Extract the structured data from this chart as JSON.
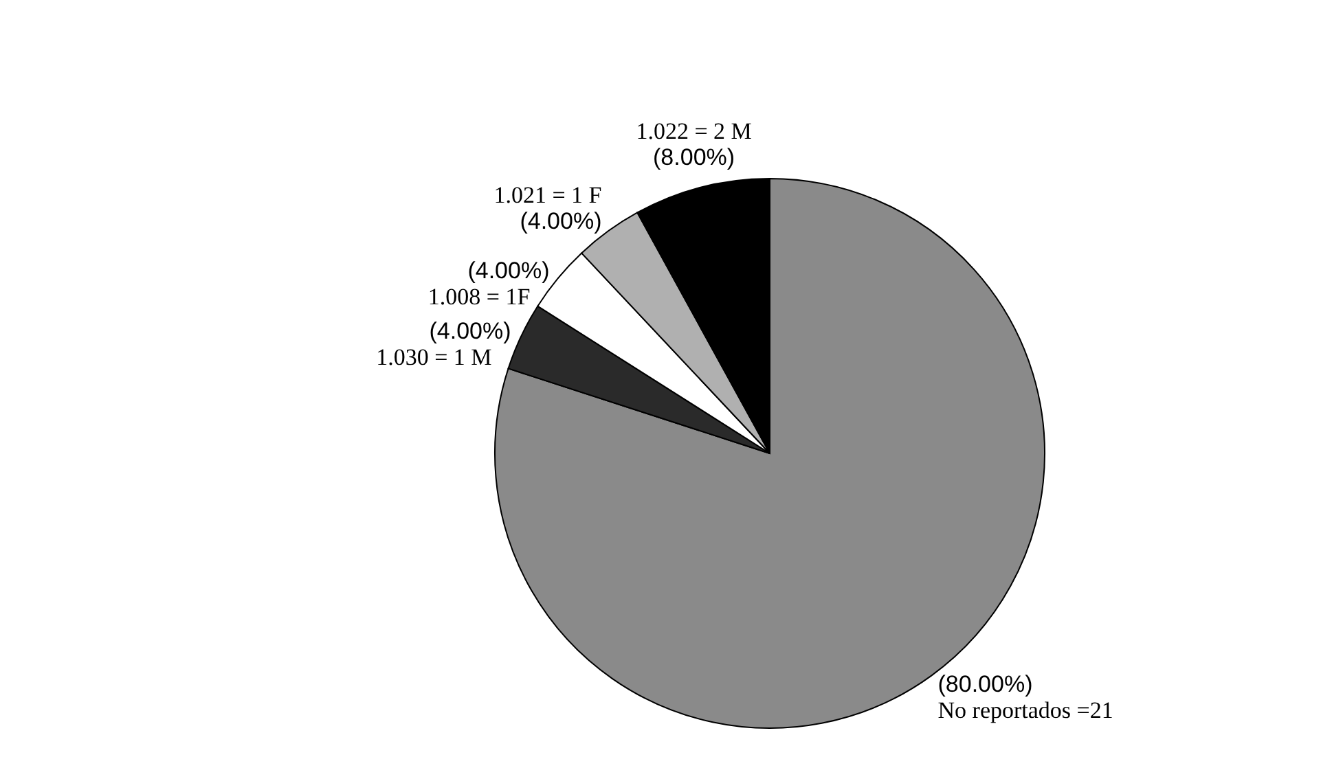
{
  "chart_data": {
    "type": "pie",
    "categories": [
      "No reportados =21",
      "1.030 =  1 M",
      "1.008 = 1F",
      "1.021 = 1 F",
      "1.022 = 2 M"
    ],
    "values": [
      80,
      4,
      4,
      4,
      8
    ],
    "value_labels": [
      "(80.00%)",
      "(4.00%)",
      "(4.00%)",
      "(4.00%)",
      "(8.00%)"
    ],
    "colors": [
      "#8a8a8a",
      "#2a2a2a",
      "#ffffff",
      "#b0b0b0",
      "#000000"
    ]
  }
}
